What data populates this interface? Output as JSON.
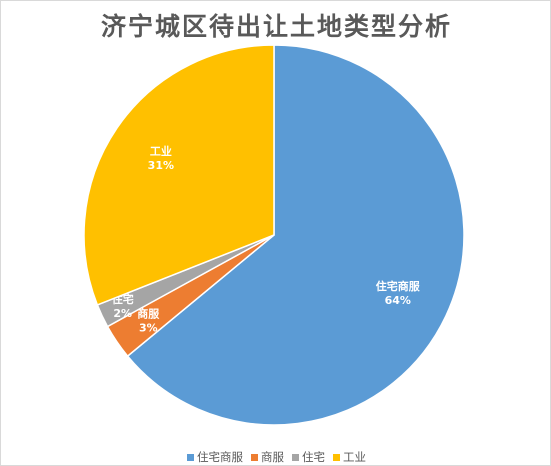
{
  "chart_data": {
    "type": "pie",
    "title": "济宁城区待出让土地类型分析",
    "categories": [
      "住宅商服",
      "商服",
      "住宅",
      "工业"
    ],
    "values": [
      64,
      3,
      2,
      31
    ],
    "value_labels": [
      "64%",
      "3%",
      "2%",
      "31%"
    ],
    "colors": [
      "#5B9BD5",
      "#ED7D31",
      "#A5A5A5",
      "#FFC000"
    ],
    "legend_position": "bottom"
  }
}
